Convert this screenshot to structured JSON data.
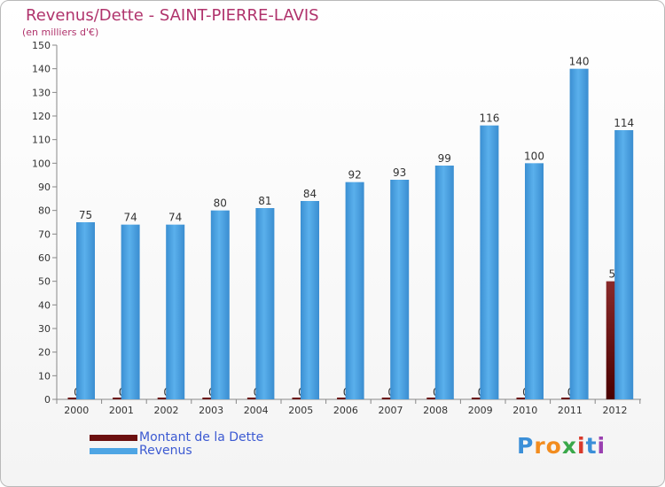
{
  "title": "Revenus/Dette - SAINT-PIERRE-LAVIS",
  "subtitle": "(en milliers d'€)",
  "colors": {
    "debt": "#6b0f0f",
    "revenue": "#4ea5e4",
    "title": "#b0336c",
    "legend_text": "#3c5ad2"
  },
  "chart_data": {
    "type": "bar",
    "categories": [
      "2000",
      "2001",
      "2002",
      "2003",
      "2004",
      "2005",
      "2006",
      "2007",
      "2008",
      "2009",
      "2010",
      "2011",
      "2012"
    ],
    "series": [
      {
        "name": "Montant de la Dette",
        "values": [
          0,
          0,
          0,
          0,
          0,
          0,
          0,
          0,
          0,
          0,
          0,
          0,
          50
        ]
      },
      {
        "name": "Revenus",
        "values": [
          75,
          74,
          74,
          80,
          81,
          84,
          92,
          93,
          99,
          116,
          100,
          140,
          114
        ]
      }
    ],
    "ylim": [
      0,
      150
    ],
    "yticks": [
      0,
      10,
      20,
      30,
      40,
      50,
      60,
      70,
      80,
      90,
      100,
      110,
      120,
      130,
      140,
      150
    ],
    "grid": false
  },
  "legend": {
    "items": [
      {
        "label": "Montant de la Dette",
        "color": "#6b0f0f"
      },
      {
        "label": "Revenus",
        "color": "#4ea5e4"
      }
    ]
  },
  "logo": {
    "letters": [
      "P",
      "r",
      "o",
      "x",
      "i",
      "t",
      "i"
    ],
    "colors": [
      "#3b8fd8",
      "#f28c1e",
      "#f28c1e",
      "#3aa84a",
      "#d93a2b",
      "#3b8fd8",
      "#9a3fb0"
    ]
  }
}
